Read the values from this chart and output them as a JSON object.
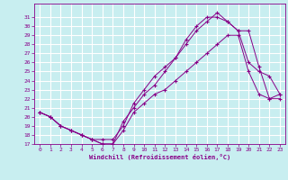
{
  "xlabel": "Windchill (Refroidissement éolien,°C)",
  "background_color": "#c8eef0",
  "grid_color": "#ffffff",
  "line_color": "#880088",
  "xlim": [
    -0.5,
    23.5
  ],
  "ylim": [
    17,
    32
  ],
  "xticks": [
    0,
    1,
    2,
    3,
    4,
    5,
    6,
    7,
    8,
    9,
    10,
    11,
    12,
    13,
    14,
    15,
    16,
    17,
    18,
    19,
    20,
    21,
    22,
    23
  ],
  "yticks": [
    17,
    18,
    19,
    20,
    21,
    22,
    23,
    24,
    25,
    26,
    27,
    28,
    29,
    30,
    31
  ],
  "line1_x": [
    0,
    1,
    2,
    3,
    4,
    5,
    6,
    7,
    8,
    9,
    10,
    11,
    12,
    13,
    14,
    15,
    16,
    17,
    18,
    19,
    20,
    21,
    22,
    23
  ],
  "line1_y": [
    20.5,
    20.0,
    19.0,
    18.5,
    18.0,
    17.5,
    17.0,
    17.0,
    18.5,
    20.5,
    21.5,
    22.5,
    23.0,
    24.0,
    25.0,
    26.0,
    27.0,
    28.0,
    29.0,
    29.0,
    25.0,
    22.5,
    22.0,
    22.0
  ],
  "line2_x": [
    0,
    1,
    2,
    3,
    4,
    5,
    6,
    7,
    8,
    9,
    10,
    11,
    12,
    13,
    14,
    15,
    16,
    17,
    18,
    19,
    20,
    21,
    22,
    23
  ],
  "line2_y": [
    20.5,
    20.0,
    19.0,
    18.5,
    18.0,
    17.5,
    17.5,
    17.5,
    19.0,
    21.5,
    23.0,
    24.5,
    25.5,
    26.5,
    28.5,
    30.0,
    31.0,
    31.0,
    30.5,
    29.5,
    26.0,
    25.0,
    24.5,
    22.5
  ],
  "line3_x": [
    0,
    1,
    2,
    3,
    4,
    5,
    6,
    7,
    8,
    9,
    10,
    11,
    12,
    13,
    14,
    15,
    16,
    17,
    18,
    19,
    20,
    21,
    22,
    23
  ],
  "line3_y": [
    20.5,
    20.0,
    19.0,
    18.5,
    18.0,
    17.5,
    17.0,
    17.0,
    19.5,
    21.0,
    22.5,
    23.5,
    25.0,
    26.5,
    28.0,
    29.5,
    30.5,
    31.5,
    30.5,
    29.5,
    29.5,
    25.5,
    22.0,
    22.5
  ]
}
